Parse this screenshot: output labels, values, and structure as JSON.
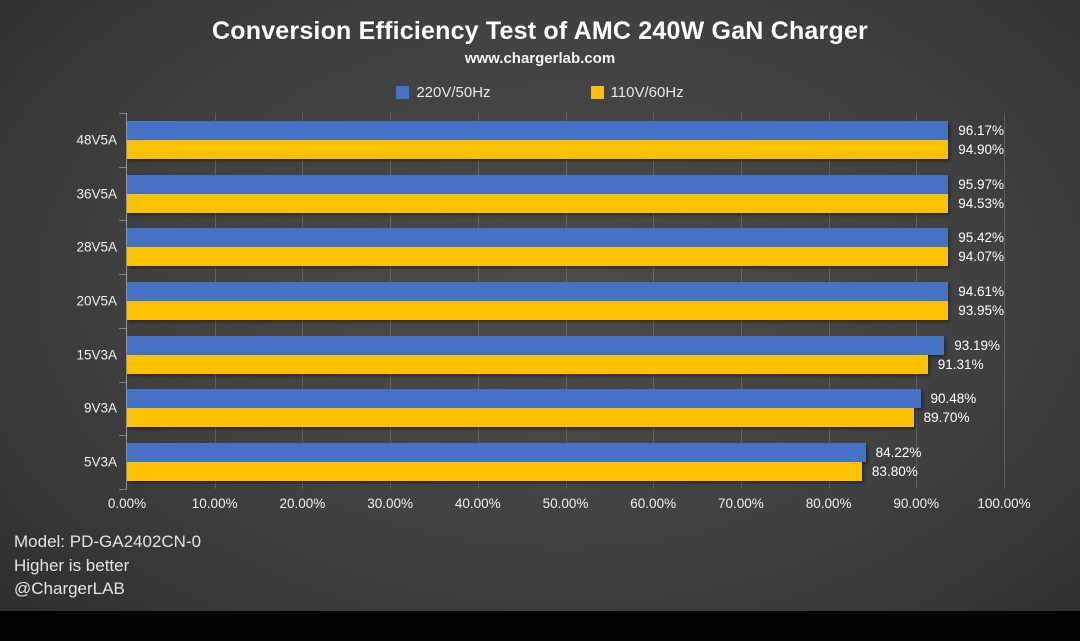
{
  "title": "Conversion Efficiency Test of AMC 240W GaN Charger",
  "subtitle": "www.chargerlab.com",
  "legend": [
    {
      "label": "220V/50Hz",
      "color": "#4472C4"
    },
    {
      "label": "110V/60Hz",
      "color": "#FFC000"
    }
  ],
  "footer": {
    "model": "Model: PD-GA2402CN-0",
    "note": "Higher is better",
    "credit": "@ChargerLAB"
  },
  "chart_data": {
    "type": "bar",
    "orientation": "horizontal",
    "title": "Conversion Efficiency Test of AMC 240W GaN Charger",
    "subtitle": "www.chargerlab.com",
    "categories": [
      "48V5A",
      "36V5A",
      "28V5A",
      "20V5A",
      "15V3A",
      "9V3A",
      "5V3A"
    ],
    "series": [
      {
        "name": "220V/50Hz",
        "color": "#4472C4",
        "values": [
          96.17,
          95.97,
          95.42,
          94.61,
          93.19,
          90.48,
          84.22
        ],
        "value_labels": [
          "96.17%",
          "95.97%",
          "95.42%",
          "94.61%",
          "93.19%",
          "90.48%",
          "84.22%"
        ]
      },
      {
        "name": "110V/60Hz",
        "color": "#FFC000",
        "values": [
          94.9,
          94.53,
          94.07,
          93.95,
          91.31,
          89.7,
          83.8
        ],
        "value_labels": [
          "94.90%",
          "94.53%",
          "94.07%",
          "93.95%",
          "91.31%",
          "89.70%",
          "83.80%"
        ]
      }
    ],
    "xlim": [
      0,
      100
    ],
    "x_ticks": [
      "0.00%",
      "10.00%",
      "20.00%",
      "30.00%",
      "40.00%",
      "50.00%",
      "60.00%",
      "70.00%",
      "80.00%",
      "90.00%",
      "100.00%"
    ],
    "grid": true,
    "legend_position": "top"
  }
}
